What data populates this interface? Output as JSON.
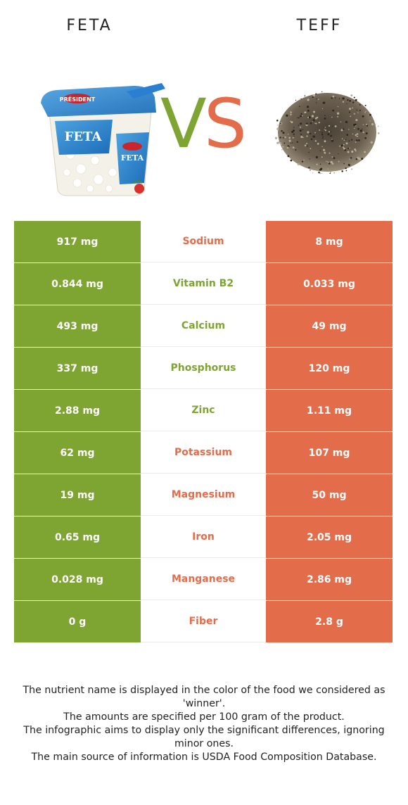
{
  "colors": {
    "left": "#7ea432",
    "right": "#e36d4b"
  },
  "left_food": {
    "name": "FETA",
    "image_icon": "feta-crumbles-tub-icon"
  },
  "right_food": {
    "name": "TEFF",
    "image_icon": "teff-grain-pile-icon"
  },
  "vs": {
    "v": "V",
    "s": "S"
  },
  "rows": [
    {
      "nutrient": "Sodium",
      "left": "917 mg",
      "right": "8 mg",
      "winner": "right"
    },
    {
      "nutrient": "Vitamin B2",
      "left": "0.844 mg",
      "right": "0.033 mg",
      "winner": "left"
    },
    {
      "nutrient": "Calcium",
      "left": "493 mg",
      "right": "49 mg",
      "winner": "left"
    },
    {
      "nutrient": "Phosphorus",
      "left": "337 mg",
      "right": "120 mg",
      "winner": "left"
    },
    {
      "nutrient": "Zinc",
      "left": "2.88 mg",
      "right": "1.11 mg",
      "winner": "left"
    },
    {
      "nutrient": "Potassium",
      "left": "62 mg",
      "right": "107 mg",
      "winner": "right"
    },
    {
      "nutrient": "Magnesium",
      "left": "19 mg",
      "right": "50 mg",
      "winner": "right"
    },
    {
      "nutrient": "Iron",
      "left": "0.65 mg",
      "right": "2.05 mg",
      "winner": "right"
    },
    {
      "nutrient": "Manganese",
      "left": "0.028 mg",
      "right": "2.86 mg",
      "winner": "right"
    },
    {
      "nutrient": "Fiber",
      "left": "0 g",
      "right": "2.8 g",
      "winner": "right"
    }
  ],
  "footnote": [
    "The nutrient name is displayed in the color of the food we considered as 'winner'.",
    "The amounts are specified per 100 gram of the product.",
    "The infographic aims to display only the significant differences, ignoring minor ones.",
    "The main source of information is USDA Food Composition Database."
  ]
}
